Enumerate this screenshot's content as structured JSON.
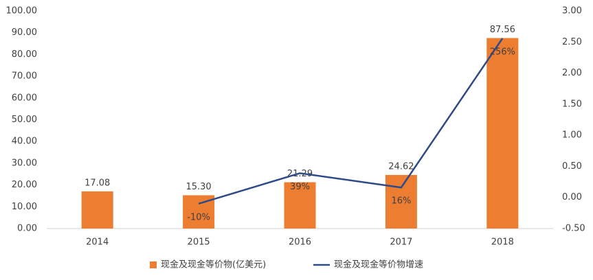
{
  "chart_data": {
    "type": "bar",
    "categories": [
      "2014",
      "2015",
      "2016",
      "2017",
      "2018"
    ],
    "series": [
      {
        "name": "现金及现金等价物(亿美元)",
        "color": "#ed7d31",
        "type": "bar",
        "values": [
          17.08,
          15.3,
          21.29,
          24.62,
          87.56
        ],
        "value_labels": [
          "17.08",
          "15.30",
          "21.29",
          "24.62",
          "87.56"
        ]
      },
      {
        "name": "现金及现金等价物增速",
        "color": "#2e4a87",
        "type": "line",
        "axis": "y2",
        "values": [
          null,
          -0.1,
          0.39,
          0.16,
          2.56
        ],
        "value_labels": [
          null,
          "-10%",
          "39%",
          "16%",
          "256%"
        ]
      }
    ],
    "ylim": [
      0,
      100
    ],
    "yticks": [
      {
        "value": 0,
        "label": "0.00"
      },
      {
        "value": 10,
        "label": "10.00"
      },
      {
        "value": 20,
        "label": "20.00"
      },
      {
        "value": 30,
        "label": "30.00"
      },
      {
        "value": 40,
        "label": "40.00"
      },
      {
        "value": 50,
        "label": "50.00"
      },
      {
        "value": 60,
        "label": "60.00"
      },
      {
        "value": 70,
        "label": "70.00"
      },
      {
        "value": 80,
        "label": "80.00"
      },
      {
        "value": 90,
        "label": "90.00"
      },
      {
        "value": 100,
        "label": "100.00"
      }
    ],
    "y2lim": [
      -0.5,
      3.0
    ],
    "y2ticks": [
      {
        "value": -0.5,
        "label": "-0.50"
      },
      {
        "value": 0,
        "label": "0.00"
      },
      {
        "value": 0.5,
        "label": "0.50"
      },
      {
        "value": 1.0,
        "label": "1.00"
      },
      {
        "value": 1.5,
        "label": "1.50"
      },
      {
        "value": 2.0,
        "label": "2.00"
      },
      {
        "value": 2.5,
        "label": "2.50"
      },
      {
        "value": 3.0,
        "label": "3.00"
      }
    ],
    "grid": false,
    "legend": "bottom"
  }
}
